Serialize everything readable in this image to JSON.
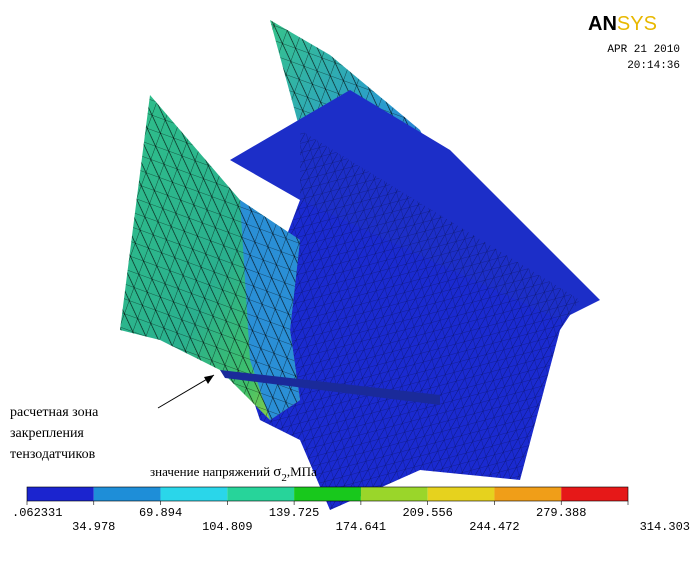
{
  "logo": {
    "part1": "AN",
    "part2": "SYS"
  },
  "date": "APR 21 2010",
  "time": "20:14:36",
  "annotation": [
    "расчетная зона",
    "закрепления",
    "тензодатчиков"
  ],
  "legend": {
    "title": "значение напряжений",
    "symbol": "σ",
    "subscript": "2",
    "unit": ",МПа",
    "colors": [
      "#1b24cf",
      "#1e8ed8",
      "#2ad6ea",
      "#27d49a",
      "#18c81c",
      "#9ad62a",
      "#e6d21e",
      "#f09e18",
      "#e61818"
    ],
    "labels": [
      ".062331",
      "34.978",
      "69.894",
      "104.809",
      "139.725",
      "174.641",
      "209.556",
      "244.472",
      "279.388",
      "314.303"
    ]
  }
}
